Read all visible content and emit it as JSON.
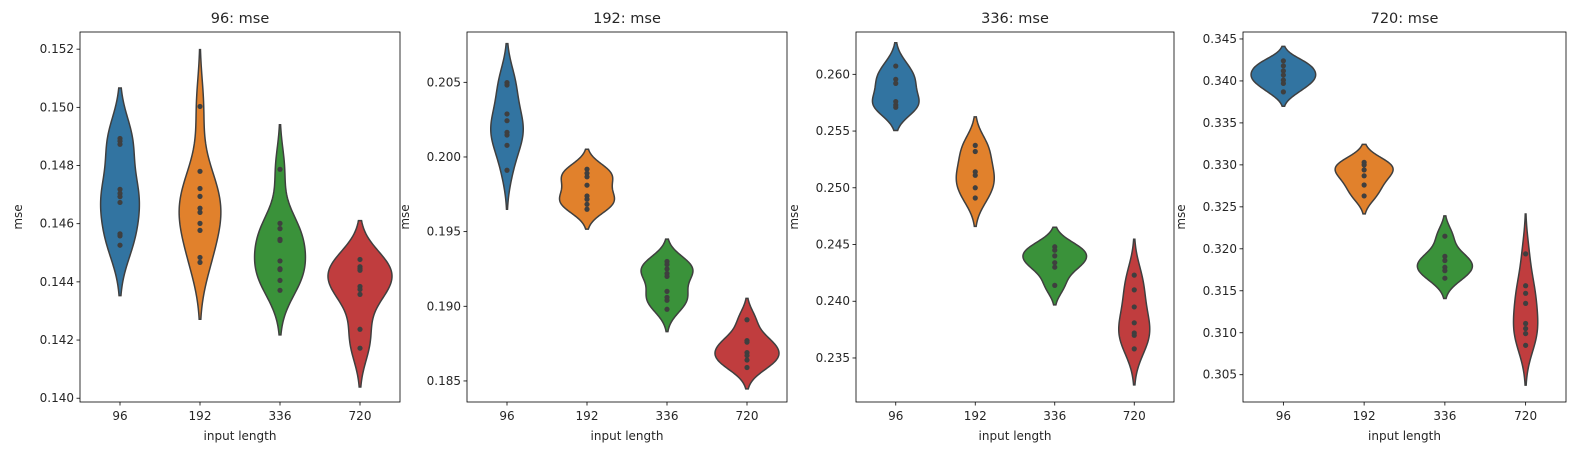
{
  "chart_data": [
    {
      "type": "violin",
      "title": "96: mse",
      "xlabel": "input length",
      "ylabel": "mse",
      "categories": [
        "96",
        "192",
        "336",
        "720"
      ],
      "ylim": [
        0.13987,
        0.15259
      ],
      "yticks": [
        "0.140",
        "0.142",
        "0.144",
        "0.146",
        "0.148",
        "0.150",
        "0.152"
      ],
      "grid": false,
      "series": [
        {
          "category": "96",
          "points": [
            0.14893,
            0.14884,
            0.14873,
            0.14718,
            0.14704,
            0.14693,
            0.14673,
            0.14565,
            0.14558,
            0.14526
          ]
        },
        {
          "category": "192",
          "points": [
            0.15003,
            0.1478,
            0.14721,
            0.14694,
            0.14653,
            0.14639,
            0.14601,
            0.14577,
            0.14484,
            0.14467
          ]
        },
        {
          "category": "336",
          "points": [
            0.14787,
            0.14601,
            0.14583,
            0.14546,
            0.14542,
            0.14472,
            0.14445,
            0.14442,
            0.14405,
            0.14371
          ]
        },
        {
          "category": "720",
          "points": [
            0.14477,
            0.14452,
            0.14445,
            0.1444,
            0.14384,
            0.14374,
            0.14357,
            0.14237,
            0.14172
          ]
        }
      ]
    },
    {
      "type": "violin",
      "title": "192: mse",
      "xlabel": "input length",
      "ylabel": "mse",
      "categories": [
        "96",
        "192",
        "336",
        "720"
      ],
      "ylim": [
        0.18359,
        0.20837
      ],
      "yticks": [
        "0.185",
        "0.190",
        "0.195",
        "0.200",
        "0.205"
      ],
      "grid": false,
      "series": [
        {
          "category": "96",
          "points": [
            0.20498,
            0.20482,
            0.20288,
            0.20243,
            0.20165,
            0.20147,
            0.20078,
            0.19911
          ]
        },
        {
          "category": "192",
          "points": [
            0.19918,
            0.19891,
            0.19867,
            0.19811,
            0.19739,
            0.19717,
            0.19683,
            0.1965
          ]
        },
        {
          "category": "336",
          "points": [
            0.193,
            0.1928,
            0.1925,
            0.1922,
            0.192,
            0.191,
            0.1906,
            0.1904,
            0.1898
          ]
        },
        {
          "category": "720",
          "points": [
            0.1891,
            0.1877,
            0.1876,
            0.1869,
            0.1867,
            0.1864,
            0.1859
          ]
        }
      ]
    },
    {
      "type": "violin",
      "title": "336: mse",
      "xlabel": "input length",
      "ylabel": "mse",
      "categories": [
        "96",
        "192",
        "336",
        "720"
      ],
      "ylim": [
        0.23112,
        0.26373
      ],
      "yticks": [
        "0.235",
        "0.240",
        "0.245",
        "0.250",
        "0.255",
        "0.260"
      ],
      "grid": false,
      "series": [
        {
          "category": "96",
          "points": [
            0.26073,
            0.25956,
            0.2592,
            0.2576,
            0.2573,
            0.2571
          ]
        },
        {
          "category": "192",
          "points": [
            0.25374,
            0.2532,
            0.2514,
            0.2511,
            0.25,
            0.2491
          ]
        },
        {
          "category": "336",
          "points": [
            0.2448,
            0.2445,
            0.244,
            0.2434,
            0.243,
            0.2414
          ]
        },
        {
          "category": "720",
          "points": [
            0.2423,
            0.241,
            0.2395,
            0.2381,
            0.2372,
            0.237,
            0.2358
          ]
        }
      ]
    },
    {
      "type": "violin",
      "title": "720: mse",
      "xlabel": "input length",
      "ylabel": "mse",
      "categories": [
        "96",
        "192",
        "336",
        "720"
      ],
      "ylim": [
        0.30175,
        0.34583
      ],
      "yticks": [
        "0.305",
        "0.310",
        "0.315",
        "0.320",
        "0.325",
        "0.330",
        "0.335",
        "0.340",
        "0.345"
      ],
      "grid": false,
      "series": [
        {
          "category": "96",
          "points": [
            0.3424,
            0.3418,
            0.3412,
            0.3407,
            0.3401,
            0.3397,
            0.3387
          ]
        },
        {
          "category": "192",
          "points": [
            0.3303,
            0.33,
            0.3294,
            0.3287,
            0.3276,
            0.3263
          ]
        },
        {
          "category": "336",
          "points": [
            0.3215,
            0.3191,
            0.3186,
            0.3178,
            0.3174,
            0.3165
          ]
        },
        {
          "category": "720",
          "points": [
            0.3194,
            0.3156,
            0.3147,
            0.3135,
            0.3111,
            0.3105,
            0.3099,
            0.3085
          ]
        }
      ]
    }
  ],
  "colors": {
    "96": "#3274a1",
    "192": "#e1812c",
    "336": "#3a923a",
    "720": "#c03d3e",
    "edge": "#3f3f3f"
  }
}
